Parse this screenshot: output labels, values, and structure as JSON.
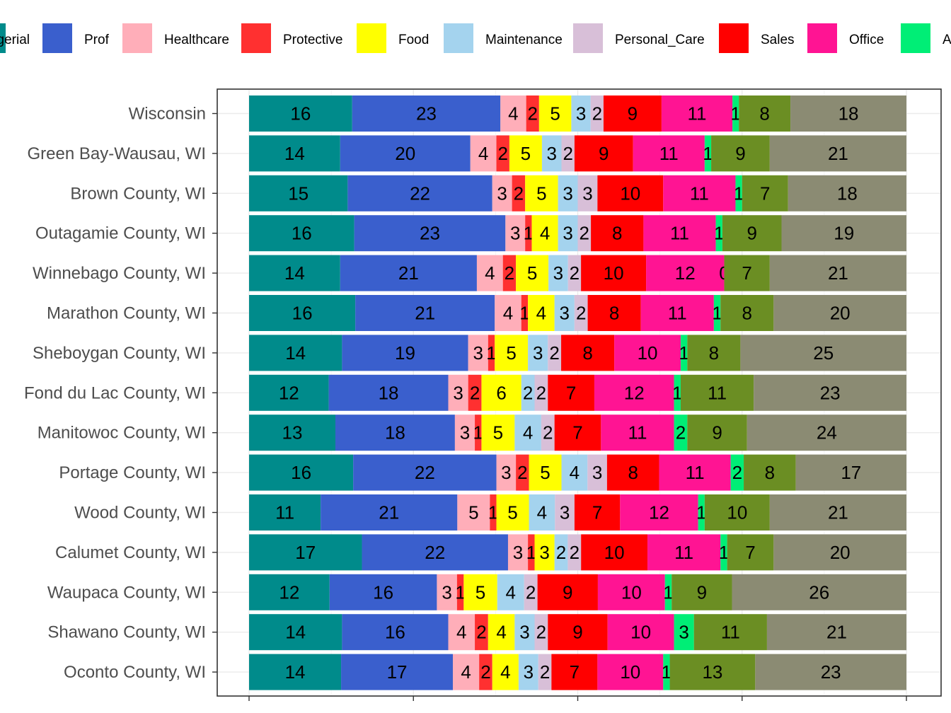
{
  "chart_data": {
    "type": "bar",
    "orientation": "horizontal",
    "stacked": true,
    "normalized_percent": true,
    "grid": true,
    "legend_position": "top",
    "title": "",
    "xlabel": "",
    "ylabel": "",
    "legend_visible_labels": [
      "gerial",
      "Prof",
      "Healthcare",
      "Protective",
      "Food",
      "Maintenance",
      "Personal_Care",
      "Sales",
      "Office",
      "A"
    ],
    "categories": [
      "Wisconsin",
      "Green Bay-Wausau, WI",
      "Brown County, WI",
      "Outagamie County, WI",
      "Winnebago County, WI",
      "Marathon County, WI",
      "Sheboygan County, WI",
      "Fond du Lac County, WI",
      "Manitowoc County, WI",
      "Portage County, WI",
      "Wood County, WI",
      "Calumet County, WI",
      "Waupaca County, WI",
      "Shawano County, WI",
      "Oconto County, WI"
    ],
    "series": [
      {
        "name": "gerial",
        "color": "#008B8B",
        "values": [
          16,
          14,
          15,
          16,
          14,
          16,
          14,
          12,
          13,
          16,
          11,
          17,
          12,
          14,
          14
        ]
      },
      {
        "name": "Prof",
        "color": "#3A5FCD",
        "values": [
          23,
          20,
          22,
          23,
          21,
          21,
          19,
          18,
          18,
          22,
          21,
          22,
          16,
          16,
          17
        ]
      },
      {
        "name": "Healthcare",
        "color": "#FFAEB9",
        "values": [
          4,
          4,
          3,
          3,
          4,
          4,
          3,
          3,
          3,
          3,
          5,
          3,
          3,
          4,
          4
        ]
      },
      {
        "name": "Protective",
        "color": "#FF3030",
        "values": [
          2,
          2,
          2,
          1,
          2,
          1,
          1,
          2,
          1,
          2,
          1,
          1,
          1,
          2,
          2
        ]
      },
      {
        "name": "Food",
        "color": "#FFFF00",
        "values": [
          5,
          5,
          5,
          4,
          5,
          4,
          5,
          6,
          5,
          5,
          5,
          3,
          5,
          4,
          4
        ]
      },
      {
        "name": "Maintenance",
        "color": "#A4D3EE",
        "values": [
          3,
          3,
          3,
          3,
          3,
          3,
          3,
          2,
          4,
          4,
          4,
          2,
          4,
          3,
          3
        ]
      },
      {
        "name": "Personal_Care",
        "color": "#D8BFD8",
        "values": [
          2,
          2,
          3,
          2,
          2,
          2,
          2,
          2,
          2,
          3,
          3,
          2,
          2,
          2,
          2
        ]
      },
      {
        "name": "Sales",
        "color": "#FF0000",
        "values": [
          9,
          9,
          10,
          8,
          10,
          8,
          8,
          7,
          7,
          8,
          7,
          10,
          9,
          9,
          7
        ]
      },
      {
        "name": "Office",
        "color": "#FF1493",
        "values": [
          11,
          11,
          11,
          11,
          12,
          11,
          10,
          12,
          11,
          11,
          12,
          11,
          10,
          10,
          10
        ]
      },
      {
        "name": "A",
        "color": "#00EE76",
        "values": [
          1,
          1,
          1,
          1,
          0,
          1,
          1,
          1,
          2,
          2,
          1,
          1,
          1,
          3,
          1
        ]
      },
      {
        "color": "#6B8E23",
        "values": [
          8,
          9,
          7,
          9,
          7,
          8,
          8,
          11,
          9,
          8,
          10,
          7,
          9,
          11,
          13
        ]
      },
      {
        "color": "#8B8B73",
        "values": [
          18,
          21,
          18,
          19,
          21,
          20,
          25,
          23,
          24,
          17,
          21,
          20,
          26,
          21,
          23
        ]
      }
    ]
  }
}
